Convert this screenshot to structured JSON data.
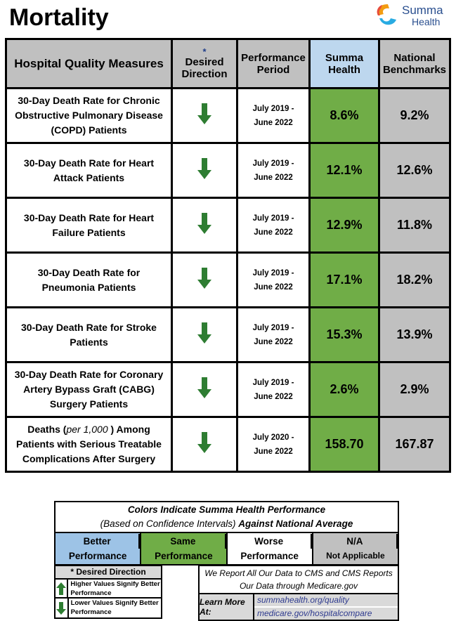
{
  "page": {
    "title": "Mortality"
  },
  "logo": {
    "line1": "Summa",
    "line2": "Health"
  },
  "table": {
    "headers": {
      "measure": "Hospital Quality Measures",
      "direction_star": "*",
      "direction": "Desired Direction",
      "period": "Performance Period",
      "summa": "Summa Health",
      "national": "National Benchmarks"
    },
    "rows": [
      {
        "measure": "30-Day Death Rate for Chronic Obstructive Pulmonary Disease (COPD) Patients",
        "direction": "down",
        "period_1": "July 2019 -",
        "period_2": "June 2022",
        "summa": "8.6%",
        "national": "9.2%"
      },
      {
        "measure": "30-Day Death Rate for Heart Attack Patients",
        "direction": "down",
        "period_1": "July 2019 -",
        "period_2": "June 2022",
        "summa": "12.1%",
        "national": "12.6%"
      },
      {
        "measure": "30-Day Death Rate for Heart Failure Patients",
        "direction": "down",
        "period_1": "July 2019 -",
        "period_2": "June 2022",
        "summa": "12.9%",
        "national": "11.8%"
      },
      {
        "measure": "30-Day Death Rate for Pneumonia Patients",
        "direction": "down",
        "period_1": "July 2019 -",
        "period_2": "June 2022",
        "summa": "17.1%",
        "national": "18.2%"
      },
      {
        "measure": "30-Day Death Rate for Stroke Patients",
        "direction": "down",
        "period_1": "July 2019 -",
        "period_2": "June 2022",
        "summa": "15.3%",
        "national": "13.9%"
      },
      {
        "measure": "30-Day Death Rate for Coronary Artery Bypass Graft (CABG) Surgery Patients",
        "direction": "down",
        "period_1": "July 2019 -",
        "period_2": "June 2022",
        "summa": "2.6%",
        "national": "2.9%"
      },
      {
        "measure_a": "Deaths (",
        "measure_b": "per 1,000",
        "measure_c": ") Among Patients with Serious Treatable Complications After Surgery",
        "direction": "down",
        "period_1": "July 2020 -",
        "period_2": "June 2022",
        "summa": "158.70",
        "national": "167.87"
      }
    ]
  },
  "legend": {
    "title": "Colors Indicate Summa Health Performance",
    "subtitle_a": "(Based on Confidence Intervals)",
    "subtitle_b": "Against National Average",
    "cells": [
      {
        "l1": "Better",
        "l2": "Performance",
        "color": "#9dc3e6"
      },
      {
        "l1": "Same",
        "l2": "Performance",
        "color": "#70ad47"
      },
      {
        "l1": "Worse",
        "l2": "Performance",
        "color": "#ffffff"
      },
      {
        "l1": "N/A",
        "l2": "Not Applicable",
        "color": "#c0c0c0"
      }
    ]
  },
  "desired_direction": {
    "title": "* Desired Direction",
    "up": "Higher Values Signify Better Performance",
    "down": "Lower Values Signify Better Performance"
  },
  "cms": {
    "text": "We Report All Our Data to CMS and CMS Reports Our Data through Medicare.gov",
    "learn_more": "Learn More At:",
    "link1": "summahealth.org/quality",
    "link2": "medicare.gov/hospitalcompare"
  },
  "colors": {
    "arrow": "#2e7d32",
    "same": "#70ad47",
    "na": "#c0c0c0",
    "summa_header": "#bdd7ee"
  }
}
